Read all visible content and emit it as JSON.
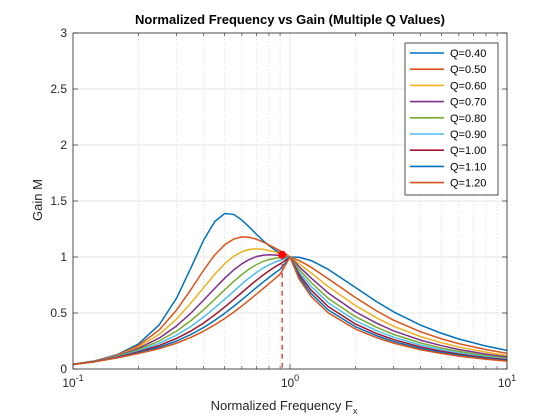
{
  "chart_data": {
    "type": "line",
    "title": "Normalized Frequency vs Gain (Multiple Q Values)",
    "xlabel": "Normalized Frequency F",
    "xlabel_sub": "x",
    "ylabel": "Gain M",
    "xscale": "log",
    "xlim": [
      0.1,
      10
    ],
    "ylim": [
      0,
      3
    ],
    "x_ticks": [
      {
        "value": 0.1,
        "base": "10",
        "exp": "-1"
      },
      {
        "value": 1,
        "base": "10",
        "exp": "0"
      },
      {
        "value": 10,
        "base": "10",
        "exp": "1"
      }
    ],
    "y_ticks": [
      {
        "value": 0,
        "label": "0"
      },
      {
        "value": 0.5,
        "label": "0.5"
      },
      {
        "value": 1,
        "label": "1"
      },
      {
        "value": 1.5,
        "label": "1.5"
      },
      {
        "value": 2,
        "label": "2"
      },
      {
        "value": 2.5,
        "label": "2.5"
      },
      {
        "value": 3,
        "label": "3"
      }
    ],
    "grid": true,
    "legend_position": "top-right",
    "x": [
      0.1,
      0.125,
      0.16,
      0.2,
      0.25,
      0.3,
      0.35,
      0.4,
      0.45,
      0.5,
      0.55,
      0.6,
      0.65,
      0.7,
      0.75,
      0.8,
      0.85,
      0.9,
      0.95,
      1.0,
      1.1,
      1.25,
      1.5,
      2,
      2.5,
      3,
      4,
      5,
      6,
      8,
      10
    ],
    "series": [
      {
        "name": "Q=0.40",
        "color": "#0072BD",
        "values": [
          0.042,
          0.071,
          0.128,
          0.223,
          0.396,
          0.632,
          0.906,
          1.151,
          1.317,
          1.388,
          1.38,
          1.33,
          1.266,
          1.203,
          1.148,
          1.102,
          1.064,
          1.035,
          1.013,
          1.0,
          0.998,
          0.969,
          0.89,
          0.729,
          0.603,
          0.511,
          0.391,
          0.318,
          0.268,
          0.205,
          0.166
        ]
      },
      {
        "name": "Q=0.50",
        "color": "#D95319",
        "values": [
          0.042,
          0.07,
          0.124,
          0.209,
          0.35,
          0.526,
          0.712,
          0.883,
          1.018,
          1.109,
          1.16,
          1.18,
          1.176,
          1.159,
          1.135,
          1.108,
          1.081,
          1.055,
          1.031,
          1.0,
          0.969,
          0.91,
          0.806,
          0.638,
          0.52,
          0.436,
          0.332,
          0.269,
          0.226,
          0.173,
          0.14
        ]
      },
      {
        "name": "Q=0.60",
        "color": "#EDB120",
        "values": [
          0.042,
          0.069,
          0.12,
          0.195,
          0.31,
          0.446,
          0.59,
          0.727,
          0.846,
          0.94,
          1.006,
          1.047,
          1.068,
          1.073,
          1.069,
          1.058,
          1.045,
          1.03,
          1.015,
          1.0,
          0.942,
          0.858,
          0.736,
          0.567,
          0.458,
          0.382,
          0.289,
          0.234,
          0.196,
          0.15,
          0.121
        ]
      },
      {
        "name": "Q=0.70",
        "color": "#7E2F8E",
        "values": [
          0.041,
          0.068,
          0.116,
          0.183,
          0.277,
          0.384,
          0.5,
          0.615,
          0.72,
          0.811,
          0.884,
          0.939,
          0.978,
          1.003,
          1.016,
          1.02,
          1.018,
          1.013,
          1.006,
          1.0,
          0.916,
          0.813,
          0.679,
          0.511,
          0.41,
          0.341,
          0.257,
          0.208,
          0.174,
          0.133,
          0.107
        ]
      },
      {
        "name": "Q=0.80",
        "color": "#77AC30",
        "values": [
          0.041,
          0.067,
          0.112,
          0.172,
          0.251,
          0.338,
          0.433,
          0.53,
          0.622,
          0.707,
          0.781,
          0.844,
          0.894,
          0.932,
          0.959,
          0.977,
          0.988,
          0.994,
          0.998,
          1.0,
          0.892,
          0.773,
          0.631,
          0.468,
          0.373,
          0.309,
          0.232,
          0.187,
          0.157,
          0.12,
          0.096
        ]
      },
      {
        "name": "Q=0.90",
        "color": "#4DBEEE",
        "values": [
          0.041,
          0.066,
          0.109,
          0.162,
          0.229,
          0.302,
          0.381,
          0.464,
          0.545,
          0.622,
          0.694,
          0.759,
          0.815,
          0.862,
          0.9,
          0.93,
          0.953,
          0.971,
          0.986,
          1.0,
          0.868,
          0.738,
          0.591,
          0.432,
          0.343,
          0.284,
          0.213,
          0.172,
          0.143,
          0.109,
          0.088
        ]
      },
      {
        "name": "Q=1.00",
        "color": "#A2142F",
        "values": [
          0.041,
          0.065,
          0.105,
          0.153,
          0.21,
          0.273,
          0.34,
          0.411,
          0.483,
          0.553,
          0.62,
          0.683,
          0.741,
          0.792,
          0.837,
          0.876,
          0.91,
          0.938,
          0.969,
          1.0,
          0.846,
          0.705,
          0.557,
          0.402,
          0.318,
          0.263,
          0.197,
          0.158,
          0.132,
          0.1,
          0.081
        ]
      },
      {
        "name": "Q=1.10",
        "color": "#0072BD",
        "values": [
          0.04,
          0.064,
          0.102,
          0.145,
          0.195,
          0.25,
          0.309,
          0.371,
          0.434,
          0.497,
          0.559,
          0.619,
          0.675,
          0.727,
          0.774,
          0.817,
          0.856,
          0.89,
          0.946,
          1.0,
          0.825,
          0.676,
          0.527,
          0.378,
          0.298,
          0.246,
          0.183,
          0.147,
          0.123,
          0.093,
          0.075
        ]
      },
      {
        "name": "Q=1.20",
        "color": "#D95319",
        "values": [
          0.04,
          0.063,
          0.099,
          0.138,
          0.182,
          0.231,
          0.283,
          0.338,
          0.394,
          0.451,
          0.507,
          0.563,
          0.617,
          0.668,
          0.716,
          0.762,
          0.805,
          0.846,
          0.924,
          1.0,
          0.805,
          0.649,
          0.501,
          0.357,
          0.281,
          0.231,
          0.172,
          0.138,
          0.115,
          0.087,
          0.07
        ]
      }
    ],
    "marker": {
      "x": 0.92,
      "y": 1.02,
      "color": "#FF0000"
    },
    "vline": {
      "x": 0.92,
      "color": "#D42020"
    }
  }
}
